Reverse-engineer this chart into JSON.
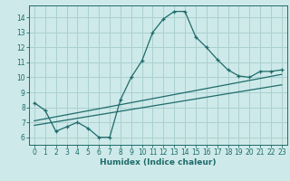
{
  "xlabel": "Humidex (Indice chaleur)",
  "ylabel": "",
  "bg_color": "#cee9e9",
  "grid_color": "#aad0d0",
  "line_color": "#1e6b6b",
  "xlim": [
    -0.5,
    23.5
  ],
  "ylim": [
    5.5,
    14.8
  ],
  "xticks": [
    0,
    1,
    2,
    3,
    4,
    5,
    6,
    7,
    8,
    9,
    10,
    11,
    12,
    13,
    14,
    15,
    16,
    17,
    18,
    19,
    20,
    21,
    22,
    23
  ],
  "yticks": [
    6,
    7,
    8,
    9,
    10,
    11,
    12,
    13,
    14
  ],
  "curve_x": [
    0,
    1,
    2,
    3,
    4,
    5,
    6,
    7,
    8,
    9,
    10,
    11,
    12,
    13,
    14,
    15,
    16,
    17,
    18,
    19,
    20,
    21,
    22,
    23
  ],
  "curve_y": [
    8.3,
    7.8,
    6.4,
    6.7,
    7.0,
    6.6,
    6.0,
    6.0,
    8.5,
    10.0,
    11.1,
    13.0,
    13.9,
    14.4,
    14.4,
    12.7,
    12.0,
    11.2,
    10.5,
    10.1,
    10.0,
    10.4,
    10.4,
    10.5
  ],
  "line1_x": [
    0,
    23
  ],
  "line1_y": [
    6.8,
    9.5
  ],
  "line2_x": [
    0,
    23
  ],
  "line2_y": [
    7.1,
    10.2
  ],
  "xlabel_fontsize": 6.5,
  "tick_fontsize": 5.5
}
